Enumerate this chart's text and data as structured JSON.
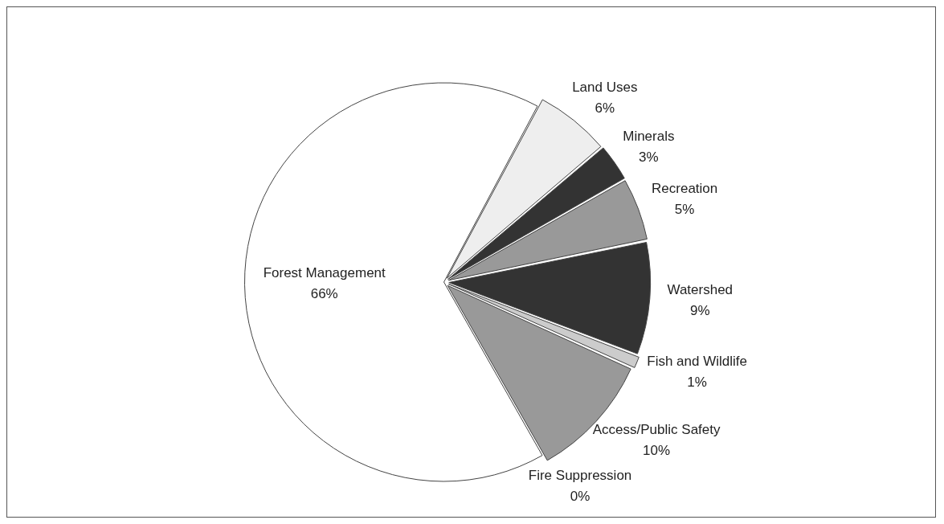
{
  "chart_data": {
    "type": "pie",
    "categories": [
      "Land Uses",
      "Minerals",
      "Recreation",
      "Watershed",
      "Fish and Wildlife",
      "Access/Public Safety",
      "Fire Suppression",
      "Forest Management"
    ],
    "values": [
      6,
      3,
      5,
      9,
      1,
      10,
      0,
      66
    ],
    "value_labels": [
      "6%",
      "3%",
      "5%",
      "9%",
      "1%",
      "10%",
      "0%",
      "66%"
    ],
    "colors": [
      "#eeeeee",
      "#333333",
      "#999999",
      "#333333",
      "#cccccc",
      "#999999",
      "#333333",
      "#ffffff"
    ],
    "legend": false
  }
}
